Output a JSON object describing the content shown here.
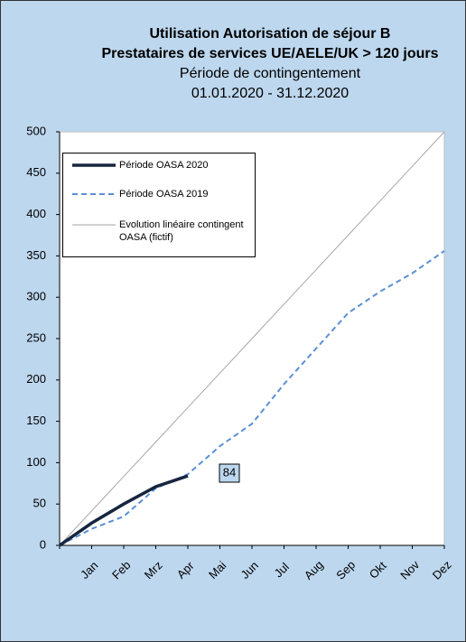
{
  "chart_data": {
    "type": "line",
    "title": "Utilisation Autorisation de séjour B",
    "subtitle": "Prestataires de services UE/AELE/UK  > 120 jours",
    "period_label": "Période de contingentement",
    "period": "01.01.2020 - 31.12.2020",
    "categories": [
      null,
      "Jan",
      "Feb",
      "Mrz",
      "Apr",
      "Mai",
      "Jun",
      "Jul",
      "Aug",
      "Sep",
      "Okt",
      "Nov",
      "Dez"
    ],
    "series": [
      {
        "name": "Période OASA 2020",
        "color": "#17263f",
        "style": "solid",
        "width": 3.5,
        "values": [
          0,
          27,
          50,
          71,
          84,
          null,
          null,
          null,
          null,
          null,
          null,
          null,
          null
        ]
      },
      {
        "name": "Période OASA 2019",
        "color": "#5b8fd4",
        "style": "dashed",
        "width": 2,
        "values": [
          0,
          20,
          35,
          69,
          86,
          120,
          147,
          195,
          238,
          281,
          307,
          329,
          356
        ]
      },
      {
        "name": "Evolution linéaire contingent OASA (fictif)",
        "color": "#a6a6a6",
        "style": "solid",
        "width": 1,
        "values": [
          0,
          41.7,
          83.3,
          125,
          166.7,
          208.3,
          250,
          291.7,
          333.3,
          375,
          416.7,
          458.3,
          500
        ]
      }
    ],
    "data_label": {
      "series": 0,
      "index": 4
    },
    "ylim": [
      0,
      500
    ],
    "yticks": [
      0,
      50,
      100,
      150,
      200,
      250,
      300,
      350,
      400,
      450,
      500
    ],
    "grid": false,
    "legend": "upper left"
  }
}
